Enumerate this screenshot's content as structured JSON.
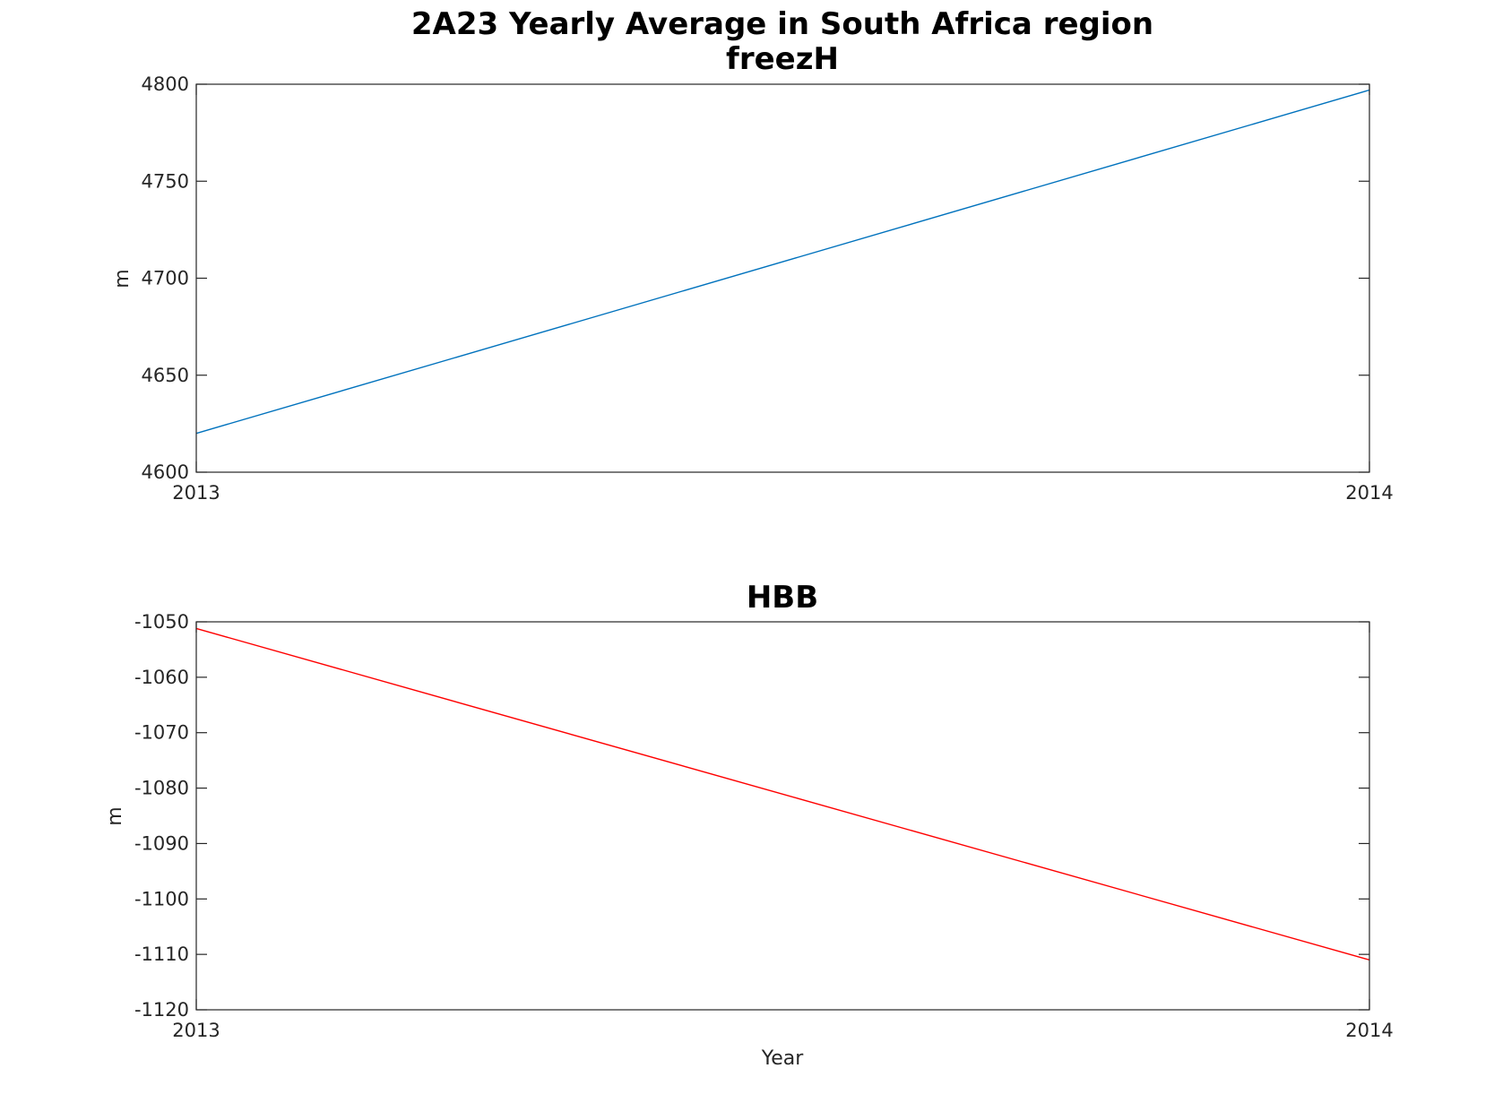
{
  "chart_data": [
    {
      "type": "line",
      "suptitle": "2A23 Yearly Average in South Africa region",
      "title": "freezH",
      "xlabel": "",
      "ylabel": "m",
      "x": [
        2013,
        2014
      ],
      "xticks": [
        "2013",
        "2014"
      ],
      "yticks": [
        "4600",
        "4650",
        "4700",
        "4750",
        "4800"
      ],
      "xlim": [
        2013,
        2014
      ],
      "ylim": [
        4600,
        4800
      ],
      "series": [
        {
          "values": [
            4620,
            4797
          ],
          "color": "#0072BD"
        }
      ]
    },
    {
      "type": "line",
      "title": "HBB",
      "xlabel": "Year",
      "ylabel": "m",
      "x": [
        2013,
        2014
      ],
      "xticks": [
        "2013",
        "2014"
      ],
      "yticks": [
        "-1120",
        "-1110",
        "-1100",
        "-1090",
        "-1080",
        "-1070",
        "-1060",
        "-1050"
      ],
      "xlim": [
        2013,
        2014
      ],
      "ylim": [
        -1120,
        -1050
      ],
      "series": [
        {
          "values": [
            -1051.2,
            -1111
          ],
          "color": "#FF0000"
        }
      ]
    }
  ]
}
